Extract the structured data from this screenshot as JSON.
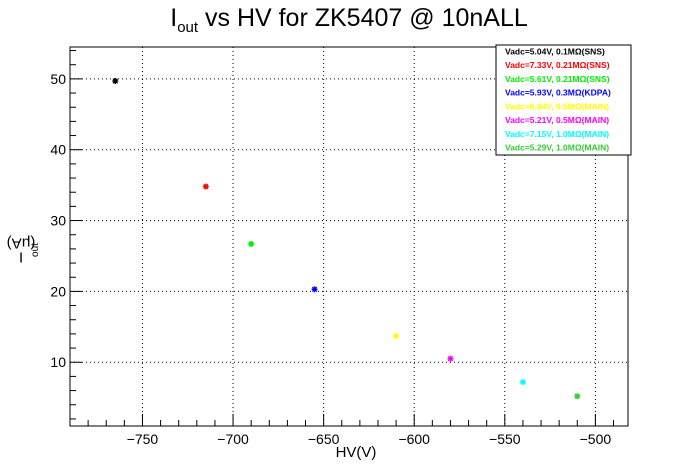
{
  "title": {
    "main": "I",
    "sub": "out",
    "rest": " vs HV for ZK5407 @ 10nALL"
  },
  "colors": {
    "axis": "#000000",
    "grid": "#000000",
    "background": "#ffffff"
  },
  "chart_data": {
    "type": "scatter",
    "title": "Iout vs HV for ZK5407 @ 10nALL",
    "xlabel": "HV(V)",
    "ylabel": {
      "main": "I",
      "sub": "out",
      "rest": " (μA)"
    },
    "xlim": [
      -790,
      -482
    ],
    "ylim": [
      1,
      54.5
    ],
    "xticks": [
      -750,
      -700,
      -650,
      -600,
      -550,
      -500
    ],
    "xtick_labels": [
      "−750",
      "−700",
      "−650",
      "−600",
      "−550",
      "−500"
    ],
    "yticks": [
      10,
      20,
      30,
      40,
      50
    ],
    "ytick_labels": [
      "10",
      "20",
      "30",
      "40",
      "50"
    ],
    "grid": true,
    "legend_position": "top-right",
    "series": [
      {
        "name": "Vadc=5.04V, 0.1MΩ(SNS)",
        "color": "#000000",
        "x": [
          -765
        ],
        "y": [
          49.7
        ]
      },
      {
        "name": "Vadc=7.33V, 0.21MΩ(SNS)",
        "color": "#ff0000",
        "x": [
          -715
        ],
        "y": [
          34.8
        ]
      },
      {
        "name": "Vadc=5.61V, 0.21MΩ(SNS)",
        "color": "#00ee00",
        "x": [
          -690
        ],
        "y": [
          26.7
        ]
      },
      {
        "name": "Vadc=5.93V, 0.3MΩ(KDPA)",
        "color": "#0000ff",
        "x": [
          -655
        ],
        "y": [
          20.3
        ]
      },
      {
        "name": "Vadc=6.84V, 0.5MΩ(MAIN)",
        "color": "#ffff00",
        "x": [
          -610
        ],
        "y": [
          13.7
        ]
      },
      {
        "name": "Vadc=5.21V, 0.5MΩ(MAIN)",
        "color": "#ff00ff",
        "x": [
          -580
        ],
        "y": [
          10.5
        ]
      },
      {
        "name": "Vadc=7.15V, 1.0MΩ(MAIN)",
        "color": "#00ffff",
        "x": [
          -540
        ],
        "y": [
          7.2
        ]
      },
      {
        "name": "Vadc=5.29V, 1.0MΩ(MAIN)",
        "color": "#33cc33",
        "x": [
          -510
        ],
        "y": [
          5.2
        ]
      }
    ]
  }
}
